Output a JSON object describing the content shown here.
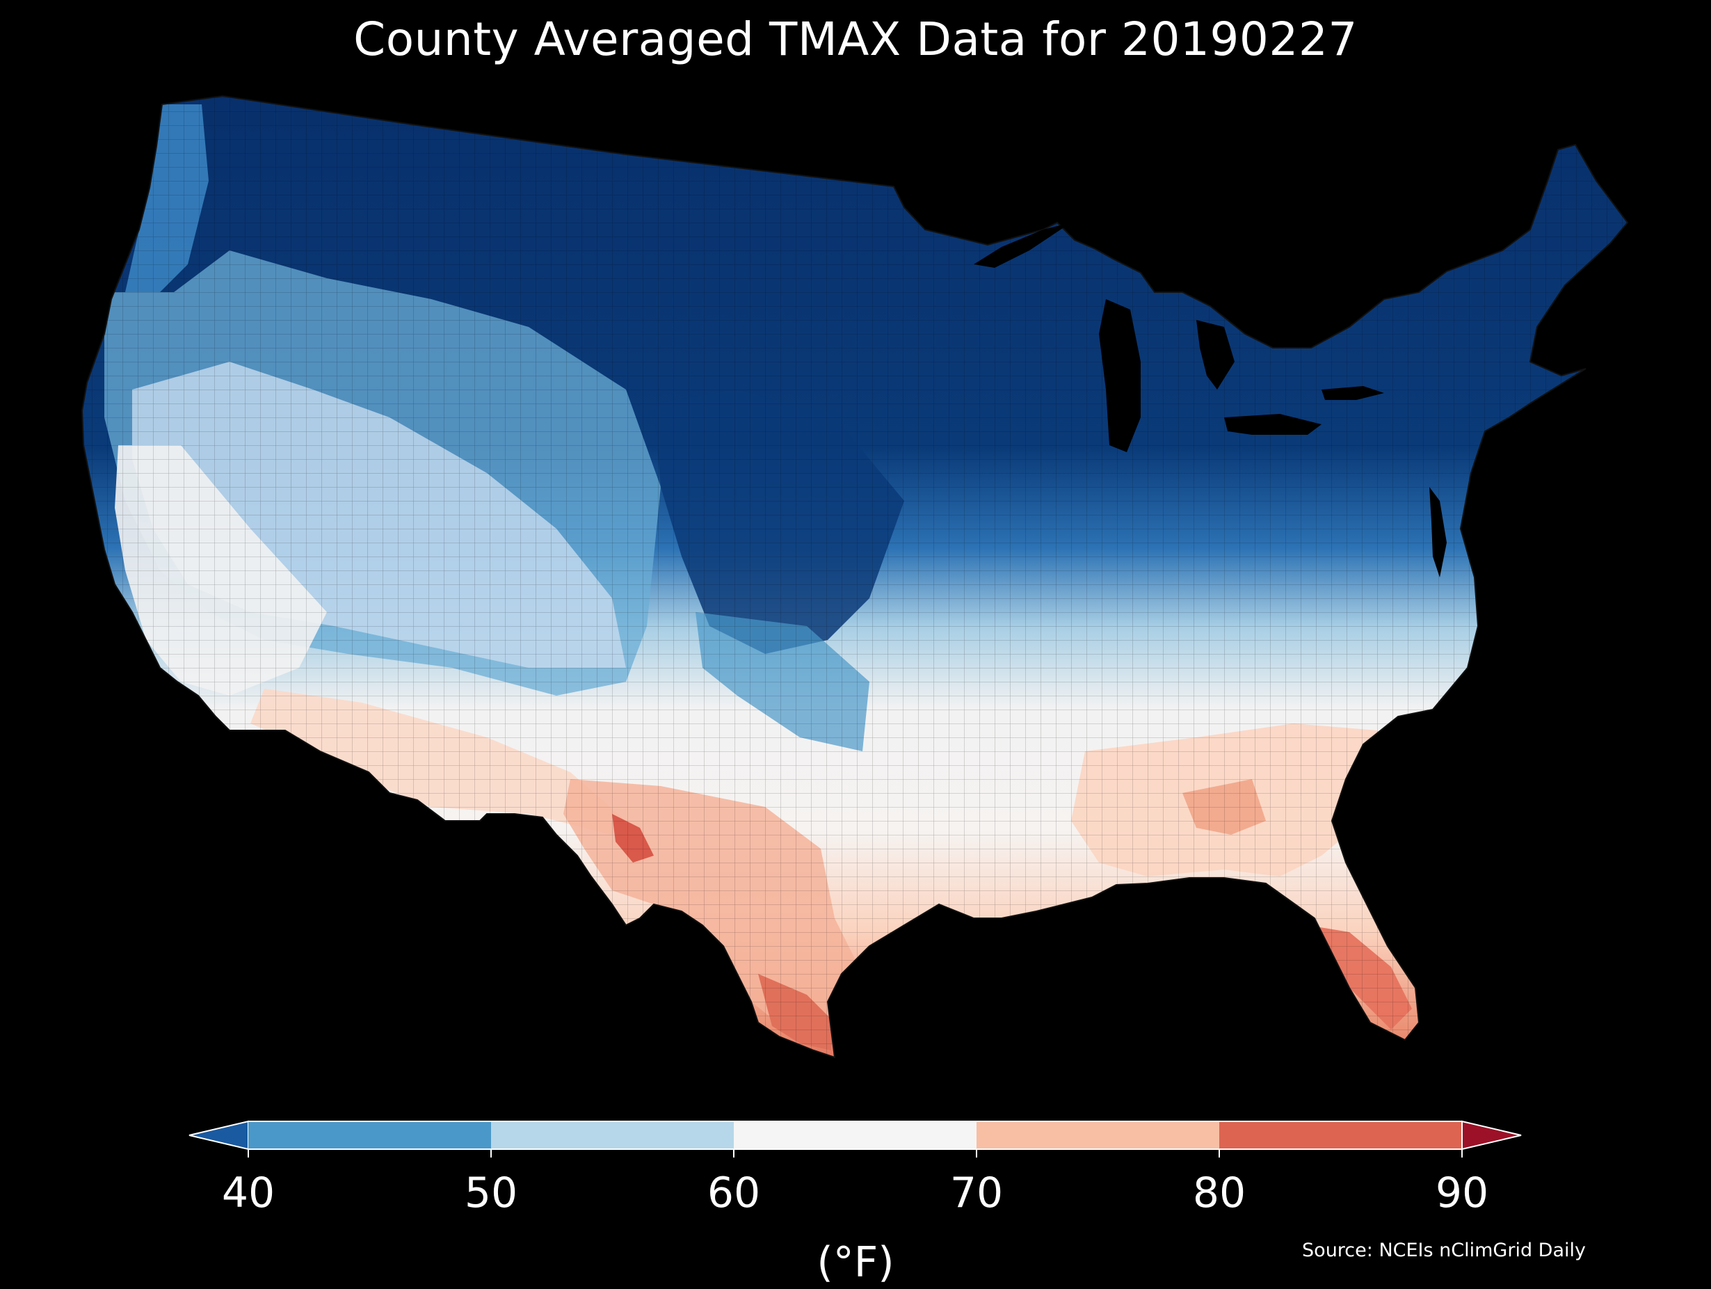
{
  "title": "County Averaged TMAX Data for 20190227",
  "colorbar": {
    "ticks": [
      "40",
      "50",
      "60",
      "70",
      "80",
      "90"
    ],
    "units": "(°F)",
    "bins": [
      {
        "range": "<40",
        "color": "#1a5aa0"
      },
      {
        "range": "40-50",
        "color": "#4a98c9"
      },
      {
        "range": "50-60",
        "color": "#b6d7e9"
      },
      {
        "range": "60-70",
        "color": "#f5f5f5"
      },
      {
        "range": "70-80",
        "color": "#f8bfa4"
      },
      {
        "range": "80-90",
        "color": "#dd6451"
      },
      {
        "range": ">90",
        "color": "#9c1127"
      }
    ]
  },
  "source": "Source: NCEIs nClimGrid Daily",
  "map": {
    "region": "Contiguous United States counties",
    "background_color": "#000000",
    "land_gradient_colors": {
      "very_cold": "#08306b",
      "cold": "#2166ac",
      "cool": "#6baed6",
      "mild": "#c6dbef",
      "neutral": "#f4f4f4",
      "warm": "#fcd5c2",
      "hot": "#e6735e"
    }
  }
}
